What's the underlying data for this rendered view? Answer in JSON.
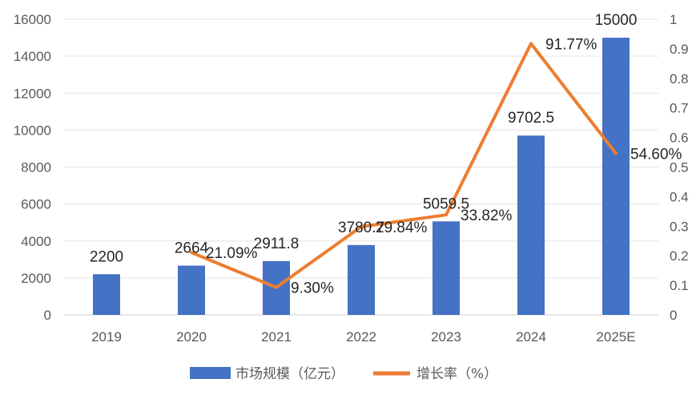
{
  "chart_data": {
    "type": "bar",
    "categories": [
      "2019",
      "2020",
      "2021",
      "2022",
      "2023",
      "2024",
      "2025E"
    ],
    "series": [
      {
        "name": "市场规模（亿元）",
        "kind": "bar",
        "axis": "left",
        "color": "#4472C4",
        "values": [
          2200,
          2664,
          2911.8,
          3780.7,
          5059.5,
          9702.5,
          15000
        ],
        "labels": [
          "2200",
          "2664",
          "2911.8",
          "3780.7",
          "5059.5",
          "9702.5",
          "15000"
        ]
      },
      {
        "name": "增长率（%）",
        "kind": "line",
        "axis": "right",
        "color": "#ED7D31",
        "values": [
          null,
          0.2109,
          0.093,
          0.2984,
          0.3382,
          0.9177,
          0.546
        ],
        "labels": [
          null,
          "21.09%",
          "9.30%",
          "29.84%",
          "33.82%",
          "91.77%",
          "54.60%"
        ]
      }
    ],
    "y_left": {
      "min": 0,
      "max": 16000,
      "step": 2000,
      "ticks": [
        "0",
        "2000",
        "4000",
        "6000",
        "8000",
        "10000",
        "12000",
        "14000",
        "16000"
      ]
    },
    "y_right": {
      "min": 0,
      "max": 1,
      "step": 0.1,
      "ticks": [
        "0",
        "0.1",
        "0.2",
        "0.3",
        "0.4",
        "0.5",
        "0.6",
        "0.7",
        "0.8",
        "0.9",
        "1"
      ]
    },
    "grid": true,
    "legend_position": "bottom",
    "title": "",
    "xlabel": "",
    "ylabel": ""
  }
}
